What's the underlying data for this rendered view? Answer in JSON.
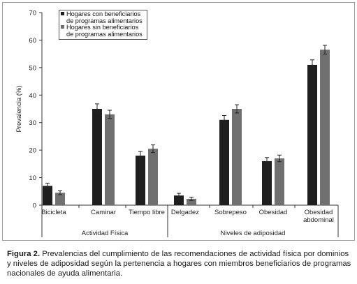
{
  "chart_data": {
    "type": "bar",
    "title": "",
    "ylabel": "Prevalencia (%)",
    "ylim": [
      0,
      70
    ],
    "yticks": [
      0,
      10,
      20,
      30,
      40,
      50,
      60,
      70
    ],
    "error_bars": true,
    "grid": false,
    "legend_position": "top-left",
    "groups": [
      {
        "label": "Actividad Física",
        "categories": [
          "Bicicleta",
          "Caminar",
          "Tiempo libre"
        ]
      },
      {
        "label": "Niveles de adiposidad",
        "categories": [
          "Delgadez",
          "Sobrepeso",
          "Obesidad",
          "Obesidad abdominal"
        ]
      }
    ],
    "categories": [
      "Bicicleta",
      "Caminar",
      "Tiempo libre",
      "Delgadez",
      "Sobrepeso",
      "Obesidad",
      "Obesidad abdominal"
    ],
    "series": [
      {
        "name": "Hogares con beneficiarios de programas alimentarios",
        "color": "#1f1f1f",
        "values": [
          7,
          35,
          18,
          3.5,
          31,
          16,
          51
        ],
        "errors": [
          1,
          1.8,
          1.5,
          0.8,
          1.6,
          1.3,
          1.8
        ]
      },
      {
        "name": "Hogares sin beneficiarios de programas alimentarios",
        "color": "#707070",
        "values": [
          4.5,
          33,
          20.5,
          2.3,
          35,
          17,
          56.5
        ],
        "errors": [
          0.7,
          1.5,
          1.4,
          0.6,
          1.5,
          1.2,
          1.6
        ]
      }
    ]
  },
  "caption": {
    "label": "Figura 2.",
    "text": " Prevalencias del cumplimiento de las recomendaciones de actividad física por dominios y niveles de adiposidad según la pertenencia a hogares con miembros beneficiarios de programas nacionales de ayuda alimentaria."
  }
}
